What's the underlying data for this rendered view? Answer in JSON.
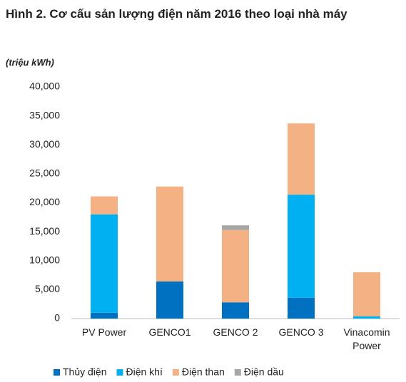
{
  "chart_data": {
    "type": "stacked_bar",
    "title": "Hình 2. Cơ cấu sản lượng điện năm 2016 theo loại nhà máy",
    "subtitle": "(triệu kWh)",
    "categories": [
      "PV Power",
      "GENCO1",
      "GENCO 2",
      "GENCO 3",
      "Vinacomin Power"
    ],
    "series": [
      {
        "name": "Thủy điện",
        "color": "#0070c0",
        "values": [
          1000,
          6400,
          2800,
          3600,
          0
        ]
      },
      {
        "name": "Điện khí",
        "color": "#00b0f0",
        "values": [
          17000,
          0,
          0,
          17800,
          400
        ]
      },
      {
        "name": "Điện than",
        "color": "#f4b183",
        "values": [
          3100,
          16400,
          12500,
          12300,
          7600
        ]
      },
      {
        "name": "Điện dầu",
        "color": "#a6a6a6",
        "values": [
          0,
          0,
          800,
          0,
          0
        ]
      }
    ],
    "ylim": [
      0,
      40000
    ],
    "yticks": [
      0,
      {
        "value": 5000,
        "label": "5,000"
      },
      {
        "value": 10000,
        "label": "10,000"
      },
      {
        "value": 15000,
        "label": "15,000"
      },
      {
        "value": 20000,
        "label": "20,000"
      },
      {
        "value": 25000,
        "label": "25,000"
      },
      {
        "value": 30000,
        "label": "30,000"
      },
      {
        "value": 35000,
        "label": "35,000"
      },
      {
        "value": 40000,
        "label": "40,000"
      }
    ],
    "grid": false,
    "legend": "bottom"
  }
}
